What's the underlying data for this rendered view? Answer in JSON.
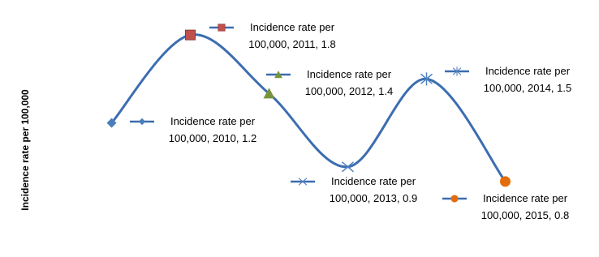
{
  "chart_data": {
    "type": "line",
    "y_axis_label": "Incidence rate per 100,000",
    "categories": [
      "2010",
      "2011",
      "2012",
      "2013",
      "2014",
      "2015"
    ],
    "series": [
      {
        "name": "Incidence rate per 100,000",
        "color": "#3c6db0",
        "values": [
          1.2,
          1.8,
          1.4,
          0.9,
          1.5,
          0.8
        ],
        "value_labels": [
          "Incidence rate per 100,000, 2010, 1.2",
          "Incidence rate per 100,000, 2011, 1.8",
          "Incidence rate per 100,000, 2012, 1.4",
          "Incidence rate per 100,000, 2013, 0.9",
          "Incidence rate per 100,000, 2014, 1.5",
          "Incidence rate per 100,000, 2015, 0.8"
        ],
        "markers": [
          {
            "shape": "diamond",
            "color": "#4a7ebb"
          },
          {
            "shape": "square",
            "color": "#c0504d"
          },
          {
            "shape": "triangle",
            "color": "#77933c"
          },
          {
            "shape": "cross",
            "color": "#4f81bd"
          },
          {
            "shape": "asterisk",
            "color": "#4f81bd"
          },
          {
            "shape": "circle",
            "color": "#e46c0a"
          }
        ]
      }
    ],
    "ylim": [
      0.6,
      2.0
    ],
    "smooth": true
  }
}
